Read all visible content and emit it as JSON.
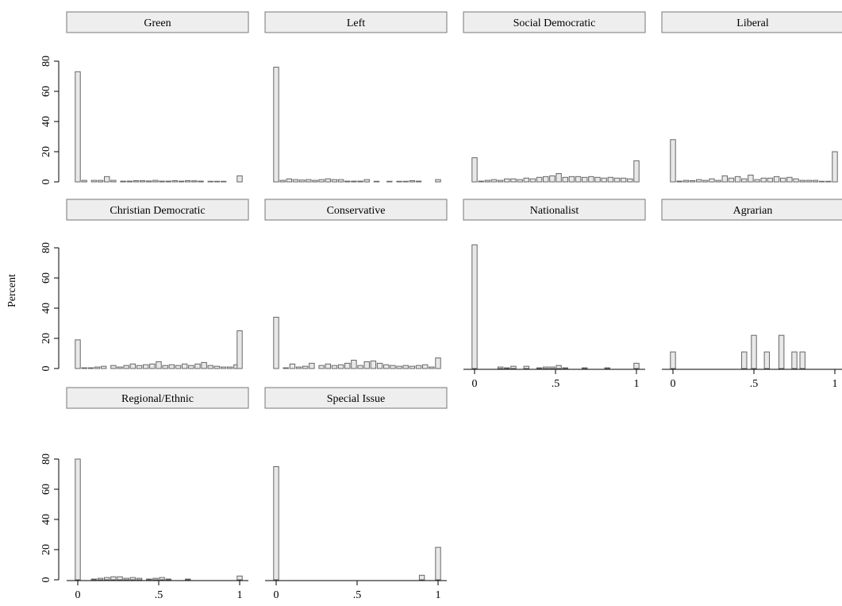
{
  "figure": {
    "ylabel": "Percent",
    "x_tick_labels": [
      "0",
      ".5",
      "1"
    ],
    "y_tick_labels": [
      "0",
      "20",
      "40",
      "60",
      "80"
    ],
    "bar_fill": "#e8e8e8",
    "bar_stroke": "#666666",
    "strip_fill": "#eeeeee",
    "strip_stroke": "#777777"
  },
  "chart_data": [
    {
      "type": "bar",
      "title": "Green",
      "xlim": [
        0,
        1
      ],
      "ylim": [
        0,
        85
      ],
      "bin_centers": [
        0,
        0.04,
        0.1,
        0.14,
        0.18,
        0.22,
        0.28,
        0.32,
        0.36,
        0.4,
        0.44,
        0.48,
        0.52,
        0.56,
        0.6,
        0.64,
        0.68,
        0.72,
        0.76,
        0.82,
        0.86,
        0.9,
        1.0
      ],
      "values": [
        73,
        1,
        1,
        1,
        3.5,
        1,
        0.5,
        0.5,
        0.8,
        0.8,
        0.6,
        1,
        0.5,
        0.5,
        0.8,
        0.5,
        0.8,
        0.7,
        0.5,
        0.4,
        0.4,
        0.4,
        4
      ]
    },
    {
      "type": "bar",
      "title": "Left",
      "xlim": [
        0,
        1
      ],
      "ylim": [
        0,
        85
      ],
      "bin_centers": [
        0,
        0.04,
        0.08,
        0.12,
        0.16,
        0.2,
        0.24,
        0.28,
        0.32,
        0.36,
        0.4,
        0.44,
        0.48,
        0.52,
        0.56,
        0.62,
        0.7,
        0.76,
        0.8,
        0.84,
        0.88,
        1.0
      ],
      "values": [
        76,
        1,
        2,
        1.5,
        1.2,
        1.5,
        1,
        1.5,
        2,
        1.5,
        1.5,
        0.5,
        0.5,
        0.5,
        1.5,
        0.4,
        0.4,
        0.4,
        0.4,
        0.8,
        0.5,
        1.5
      ]
    },
    {
      "type": "bar",
      "title": "Social Democratic",
      "xlim": [
        0,
        1
      ],
      "ylim": [
        0,
        85
      ],
      "bin_centers": [
        0,
        0.04,
        0.08,
        0.12,
        0.16,
        0.2,
        0.24,
        0.28,
        0.32,
        0.36,
        0.4,
        0.44,
        0.48,
        0.52,
        0.56,
        0.6,
        0.64,
        0.68,
        0.72,
        0.76,
        0.8,
        0.84,
        0.88,
        0.92,
        0.96,
        1.0
      ],
      "values": [
        16,
        0.5,
        1,
        1.5,
        1,
        2,
        2,
        1.5,
        2.5,
        2,
        3,
        3.5,
        4,
        5.5,
        3,
        3.5,
        3.5,
        3,
        3.5,
        3,
        2.5,
        3,
        2.5,
        2.5,
        2,
        14
      ]
    },
    {
      "type": "bar",
      "title": "Liberal",
      "xlim": [
        0,
        1
      ],
      "ylim": [
        0,
        85
      ],
      "bin_centers": [
        0,
        0.04,
        0.08,
        0.12,
        0.16,
        0.2,
        0.24,
        0.28,
        0.32,
        0.36,
        0.4,
        0.44,
        0.48,
        0.52,
        0.56,
        0.6,
        0.64,
        0.68,
        0.72,
        0.76,
        0.8,
        0.84,
        0.88,
        0.92,
        0.96,
        1.0
      ],
      "values": [
        28,
        0.5,
        1,
        0.8,
        1.5,
        1,
        2,
        1,
        4,
        2.5,
        3.5,
        2,
        4.5,
        1.5,
        2.5,
        2.5,
        3.5,
        2.5,
        3,
        2,
        1,
        1,
        1,
        0.4,
        0.4,
        20
      ]
    },
    {
      "type": "bar",
      "title": "Christian Democratic",
      "xlim": [
        0,
        1
      ],
      "ylim": [
        0,
        85
      ],
      "bin_centers": [
        0,
        0.04,
        0.08,
        0.12,
        0.16,
        0.22,
        0.26,
        0.3,
        0.34,
        0.38,
        0.42,
        0.46,
        0.5,
        0.54,
        0.58,
        0.62,
        0.66,
        0.7,
        0.74,
        0.78,
        0.82,
        0.86,
        0.9,
        0.94,
        0.98,
        1.0
      ],
      "values": [
        19,
        0.5,
        0.5,
        1,
        1.5,
        2,
        1,
        2,
        3,
        2,
        2.5,
        3,
        4.5,
        2,
        2.5,
        2,
        3,
        2,
        3,
        4,
        2,
        1.5,
        1,
        1,
        2.5,
        25
      ]
    },
    {
      "type": "bar",
      "title": "Conservative",
      "xlim": [
        0,
        1
      ],
      "ylim": [
        0,
        85
      ],
      "bin_centers": [
        0,
        0.06,
        0.1,
        0.14,
        0.18,
        0.22,
        0.28,
        0.32,
        0.36,
        0.4,
        0.44,
        0.48,
        0.52,
        0.56,
        0.6,
        0.64,
        0.68,
        0.72,
        0.76,
        0.8,
        0.84,
        0.88,
        0.92,
        0.96,
        1.0
      ],
      "values": [
        34,
        0.5,
        3,
        1,
        1.5,
        3.5,
        2,
        3,
        2,
        2.5,
        3.5,
        5.5,
        2,
        4.5,
        5,
        3.5,
        2.5,
        2,
        1.5,
        2,
        1.5,
        2,
        2.5,
        1,
        7
      ]
    },
    {
      "type": "bar",
      "title": "Nationalist",
      "xlim": [
        0,
        1
      ],
      "ylim": [
        0,
        85
      ],
      "bin_centers": [
        0,
        0.16,
        0.2,
        0.24,
        0.32,
        0.4,
        0.44,
        0.48,
        0.52,
        0.56,
        0.68,
        0.82,
        1.0
      ],
      "values": [
        82,
        1,
        0.5,
        1.5,
        1.5,
        0.5,
        1,
        1,
        2,
        0.5,
        0.5,
        0.5,
        3.5
      ]
    },
    {
      "type": "bar",
      "title": "Agrarian",
      "xlim": [
        0,
        1
      ],
      "ylim": [
        0,
        85
      ],
      "bin_centers": [
        0,
        0.44,
        0.5,
        0.58,
        0.67,
        0.75,
        0.8,
        1.0
      ],
      "values": [
        11,
        11,
        22,
        11,
        22,
        11,
        11,
        0
      ]
    },
    {
      "type": "bar",
      "title": "Regional/Ethnic",
      "xlim": [
        0,
        1
      ],
      "ylim": [
        0,
        85
      ],
      "bin_centers": [
        0,
        0.1,
        0.14,
        0.18,
        0.22,
        0.26,
        0.3,
        0.34,
        0.38,
        0.44,
        0.48,
        0.52,
        0.56,
        0.68,
        1.0
      ],
      "values": [
        80,
        0.5,
        1,
        1.5,
        2,
        2,
        1,
        1.5,
        1,
        0.5,
        1,
        1.5,
        0.5,
        0.5,
        2.5
      ]
    },
    {
      "type": "bar",
      "title": "Special Issue",
      "xlim": [
        0,
        1
      ],
      "ylim": [
        0,
        85
      ],
      "bin_centers": [
        0,
        0.9,
        1.0
      ],
      "values": [
        75,
        3,
        21.5
      ]
    }
  ]
}
